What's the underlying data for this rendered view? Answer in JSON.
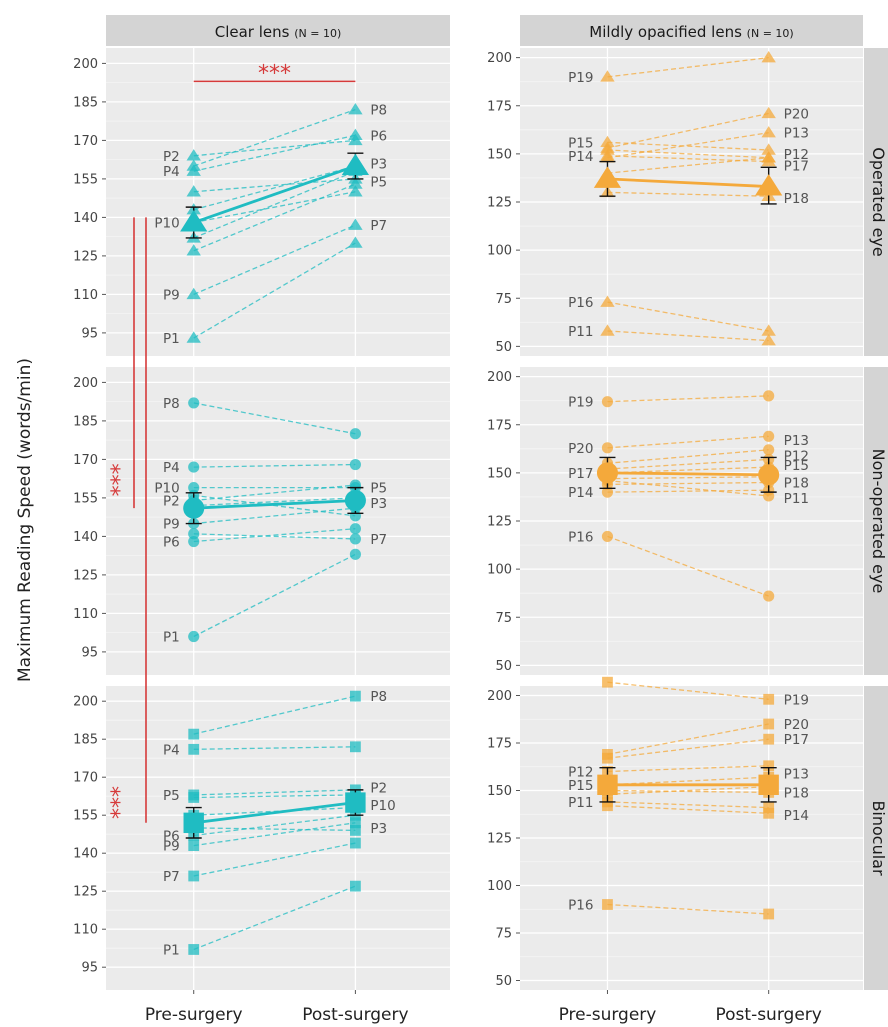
{
  "chart_data": {
    "type": "line",
    "ylabel": "Maximum Reading Speed (words/min)",
    "x_categories": [
      "Pre-surgery",
      "Post-surgery"
    ],
    "colors": {
      "clear": "#1fbcc2",
      "opacified": "#f4a93b",
      "significance": "#d63a3a",
      "panel": "#ebebeb",
      "strip": "#d4d4d4"
    },
    "significance_label": "***",
    "columns": [
      {
        "key": "clear",
        "title": "Clear lens",
        "n_label": "(N = 10)",
        "marker": "triangle",
        "y_ticks": [
          95,
          110,
          125,
          140,
          155,
          170,
          185,
          200
        ]
      },
      {
        "key": "opac",
        "title": "Mildly opacified lens",
        "n_label": "(N = 10)",
        "marker": "triangle",
        "y_ticks": [
          50,
          75,
          100,
          125,
          150,
          175,
          200
        ]
      }
    ],
    "rows": [
      "Operated eye",
      "Non-operated eye",
      "Binocular"
    ],
    "panels": [
      {
        "col": 0,
        "row": 0,
        "marker": "triangle",
        "ylim": [
          86,
          206
        ],
        "participants": [
          {
            "id": "P1",
            "pre": 93,
            "post": 130,
            "label": "pre"
          },
          {
            "id": "P9",
            "pre": 110,
            "post": 137,
            "label": "pre"
          },
          {
            "id": "P10",
            "pre": 138,
            "post": 150,
            "label": "pre"
          },
          {
            "id": "P4",
            "pre": 158,
            "post": 172,
            "label": "pre"
          },
          {
            "id": "P2",
            "pre": 164,
            "post": 170,
            "label": "pre"
          },
          {
            "id": "",
            "pre": 127,
            "post": 153,
            "label": ""
          },
          {
            "id": "",
            "pre": 150,
            "post": 155,
            "label": ""
          },
          {
            "id": "",
            "pre": 160,
            "post": 182,
            "label": ""
          },
          {
            "id": "",
            "pre": 143,
            "post": 160,
            "label": ""
          },
          {
            "id": "",
            "pre": 132,
            "post": 158,
            "label": ""
          },
          {
            "id": "P8",
            "pre": null,
            "post": 182,
            "label": "post"
          },
          {
            "id": "P6",
            "pre": null,
            "post": 172,
            "label": "post"
          },
          {
            "id": "P3",
            "pre": null,
            "post": 161,
            "label": "post"
          },
          {
            "id": "P5",
            "pre": null,
            "post": 154,
            "label": "post"
          },
          {
            "id": "P7",
            "pre": null,
            "post": 137,
            "label": "post"
          }
        ],
        "mean": {
          "pre": 138,
          "post": 160
        },
        "error": {
          "pre": [
            132,
            144
          ],
          "post": [
            155,
            165
          ]
        }
      },
      {
        "col": 1,
        "row": 0,
        "marker": "triangle",
        "ylim": [
          45,
          205
        ],
        "participants": [
          {
            "id": "P19",
            "pre": 190,
            "post": 200,
            "label": "pre"
          },
          {
            "id": "P15",
            "pre": 156,
            "post": 152,
            "label": "pre"
          },
          {
            "id": "P14",
            "pre": 149,
            "post": 146,
            "label": "pre"
          },
          {
            "id": "P16",
            "pre": 73,
            "post": 58,
            "label": "pre"
          },
          {
            "id": "P11",
            "pre": 58,
            "post": 53,
            "label": "pre"
          },
          {
            "id": "",
            "pre": 153,
            "post": 171,
            "label": ""
          },
          {
            "id": "",
            "pre": 148,
            "post": 161,
            "label": ""
          },
          {
            "id": "",
            "pre": 152,
            "post": 148,
            "label": ""
          },
          {
            "id": "",
            "pre": 130,
            "post": 128,
            "label": ""
          },
          {
            "id": "",
            "pre": 140,
            "post": 148,
            "label": ""
          },
          {
            "id": "P20",
            "pre": null,
            "post": 171,
            "label": "post"
          },
          {
            "id": "P13",
            "pre": null,
            "post": 161,
            "label": "post"
          },
          {
            "id": "P12",
            "pre": null,
            "post": 150,
            "label": "post"
          },
          {
            "id": "P17",
            "pre": null,
            "post": 144,
            "label": "post"
          },
          {
            "id": "P18",
            "pre": null,
            "post": 127,
            "label": "post"
          }
        ],
        "mean": {
          "pre": 137,
          "post": 133
        },
        "error": {
          "pre": [
            128,
            146
          ],
          "post": [
            124,
            143
          ]
        }
      },
      {
        "col": 0,
        "row": 1,
        "marker": "circle",
        "ylim": [
          86,
          206
        ],
        "participants": [
          {
            "id": "P8",
            "pre": 192,
            "post": 180,
            "label": "pre"
          },
          {
            "id": "P4",
            "pre": 167,
            "post": 168,
            "label": "pre"
          },
          {
            "id": "P10",
            "pre": 159,
            "post": 159,
            "label": "pre"
          },
          {
            "id": "P2",
            "pre": 154,
            "post": 160,
            "label": "pre"
          },
          {
            "id": "P9",
            "pre": 145,
            "post": 151,
            "label": "pre"
          },
          {
            "id": "P6",
            "pre": 138,
            "post": 143,
            "label": "pre"
          },
          {
            "id": "P1",
            "pre": 101,
            "post": 133,
            "label": "pre"
          },
          {
            "id": "",
            "pre": 156,
            "post": 148,
            "label": ""
          },
          {
            "id": "",
            "pre": 152,
            "post": 155,
            "label": ""
          },
          {
            "id": "",
            "pre": 141,
            "post": 139,
            "label": ""
          },
          {
            "id": "P5",
            "pre": null,
            "post": 159,
            "label": "post"
          },
          {
            "id": "P3",
            "pre": null,
            "post": 153,
            "label": "post"
          },
          {
            "id": "P7",
            "pre": null,
            "post": 139,
            "label": "post"
          }
        ],
        "mean": {
          "pre": 151,
          "post": 154
        },
        "error": {
          "pre": [
            145,
            157
          ],
          "post": [
            149,
            159
          ]
        }
      },
      {
        "col": 1,
        "row": 1,
        "marker": "circle",
        "ylim": [
          45,
          205
        ],
        "participants": [
          {
            "id": "P19",
            "pre": 187,
            "post": 190,
            "label": "pre"
          },
          {
            "id": "P20",
            "pre": 163,
            "post": 169,
            "label": "pre"
          },
          {
            "id": "P17",
            "pre": 150,
            "post": 153,
            "label": "pre"
          },
          {
            "id": "P14",
            "pre": 140,
            "post": 141,
            "label": "pre"
          },
          {
            "id": "P16",
            "pre": 117,
            "post": 86,
            "label": "pre"
          },
          {
            "id": "",
            "pre": 155,
            "post": 162,
            "label": ""
          },
          {
            "id": "",
            "pre": 147,
            "post": 148,
            "label": ""
          },
          {
            "id": "",
            "pre": 144,
            "post": 145,
            "label": ""
          },
          {
            "id": "",
            "pre": 152,
            "post": 157,
            "label": ""
          },
          {
            "id": "",
            "pre": 146,
            "post": 138,
            "label": ""
          },
          {
            "id": "P13",
            "pre": null,
            "post": 167,
            "label": "post"
          },
          {
            "id": "P12",
            "pre": null,
            "post": 159,
            "label": "post"
          },
          {
            "id": "P15",
            "pre": null,
            "post": 154,
            "label": "post"
          },
          {
            "id": "P18",
            "pre": null,
            "post": 145,
            "label": "post"
          },
          {
            "id": "P11",
            "pre": null,
            "post": 137,
            "label": "post"
          }
        ],
        "mean": {
          "pre": 150,
          "post": 149
        },
        "error": {
          "pre": [
            142,
            158
          ],
          "post": [
            140,
            158
          ]
        }
      },
      {
        "col": 0,
        "row": 2,
        "marker": "square",
        "ylim": [
          86,
          206
        ],
        "participants": [
          {
            "id": "P4",
            "pre": 181,
            "post": 182,
            "label": "pre"
          },
          {
            "id": "P5",
            "pre": 163,
            "post": 165,
            "label": "pre"
          },
          {
            "id": "P6",
            "pre": 147,
            "post": 155,
            "label": "pre"
          },
          {
            "id": "P9",
            "pre": 143,
            "post": 152,
            "label": "pre"
          },
          {
            "id": "P7",
            "pre": 131,
            "post": 144,
            "label": "pre"
          },
          {
            "id": "P1",
            "pre": 102,
            "post": 127,
            "label": "pre"
          },
          {
            "id": "",
            "pre": 187,
            "post": 202,
            "label": ""
          },
          {
            "id": "",
            "pre": 162,
            "post": 163,
            "label": ""
          },
          {
            "id": "",
            "pre": 155,
            "post": 158,
            "label": ""
          },
          {
            "id": "",
            "pre": 150,
            "post": 149,
            "label": ""
          },
          {
            "id": "P8",
            "pre": null,
            "post": 202,
            "label": "post"
          },
          {
            "id": "P2",
            "pre": null,
            "post": 166,
            "label": "post"
          },
          {
            "id": "P10",
            "pre": null,
            "post": 159,
            "label": "post"
          },
          {
            "id": "P3",
            "pre": null,
            "post": 150,
            "label": "post"
          }
        ],
        "mean": {
          "pre": 152,
          "post": 160
        },
        "error": {
          "pre": [
            146,
            158
          ],
          "post": [
            155,
            165
          ]
        }
      },
      {
        "col": 1,
        "row": 2,
        "marker": "square",
        "ylim": [
          45,
          205
        ],
        "participants": [
          {
            "id": "P12",
            "pre": 160,
            "post": 163,
            "label": "pre"
          },
          {
            "id": "P15",
            "pre": 153,
            "post": 157,
            "label": "pre"
          },
          {
            "id": "P11",
            "pre": 144,
            "post": 141,
            "label": "pre"
          },
          {
            "id": "P16",
            "pre": 90,
            "post": 85,
            "label": "pre"
          },
          {
            "id": "",
            "pre": 207,
            "post": 198,
            "label": ""
          },
          {
            "id": "",
            "pre": 169,
            "post": 185,
            "label": ""
          },
          {
            "id": "",
            "pre": 167,
            "post": 177,
            "label": ""
          },
          {
            "id": "",
            "pre": 148,
            "post": 152,
            "label": ""
          },
          {
            "id": "",
            "pre": 150,
            "post": 149,
            "label": ""
          },
          {
            "id": "",
            "pre": 142,
            "post": 138,
            "label": ""
          },
          {
            "id": "P19",
            "pre": null,
            "post": 198,
            "label": "post"
          },
          {
            "id": "P20",
            "pre": null,
            "post": 185,
            "label": "post"
          },
          {
            "id": "P17",
            "pre": null,
            "post": 177,
            "label": "post"
          },
          {
            "id": "P13",
            "pre": null,
            "post": 159,
            "label": "post"
          },
          {
            "id": "P18",
            "pre": null,
            "post": 149,
            "label": "post"
          },
          {
            "id": "P14",
            "pre": null,
            "post": 137,
            "label": "post"
          }
        ],
        "mean": {
          "pre": 153,
          "post": 153
        },
        "error": {
          "pre": [
            144,
            162
          ],
          "post": [
            144,
            162
          ]
        }
      }
    ],
    "significance": [
      {
        "type": "horizontal",
        "panel": "clear-operated",
        "label": "***"
      },
      {
        "type": "vertical",
        "from": "clear-operated",
        "to": "clear-non-operated",
        "label": "***"
      },
      {
        "type": "vertical",
        "from": "clear-operated",
        "to": "clear-binocular",
        "label": "***"
      }
    ]
  }
}
